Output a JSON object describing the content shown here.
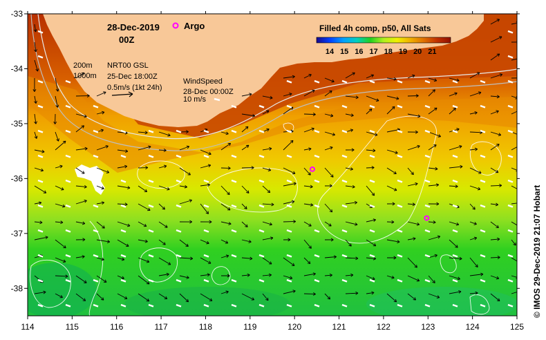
{
  "title": {
    "date": "28-Dec-2019",
    "time": "00Z"
  },
  "argo_legend": "Argo",
  "colorbar": {
    "title": "Filled 4h comp, p50, All Sats",
    "ticks": [
      "14",
      "15",
      "16",
      "17",
      "18",
      "19",
      "20",
      "21"
    ],
    "colors": [
      "#1a0a8c",
      "#0040ff",
      "#00a0ff",
      "#00d0c0",
      "#20d020",
      "#b0f020",
      "#f0f000",
      "#f0b000",
      "#e07000",
      "#c03000",
      "#901000"
    ]
  },
  "contour_legend": {
    "line1": "200m",
    "line2": "1000m"
  },
  "current_legend": {
    "source": "NRT00 GSL",
    "time": "25-Dec 18:00Z",
    "scale": "0.5m/s (1kt 24h)"
  },
  "wind_legend": {
    "title": "WindSpeed",
    "time": "28-Dec 00:00Z",
    "scale": "10 m/s"
  },
  "axes": {
    "lon_labels": [
      "114",
      "115",
      "116",
      "117",
      "118",
      "119",
      "120",
      "121",
      "122",
      "123",
      "124",
      "125"
    ],
    "lat_labels": [
      "-33",
      "-34",
      "-35",
      "-36",
      "-37",
      "-38"
    ]
  },
  "argo_floats": [
    {
      "lon": 120.4,
      "lat": -35.83
    },
    {
      "lon": 122.97,
      "lat": -36.72
    }
  ],
  "credit": "© IMOS 29-Dec-2019 21:07 Hobart"
}
